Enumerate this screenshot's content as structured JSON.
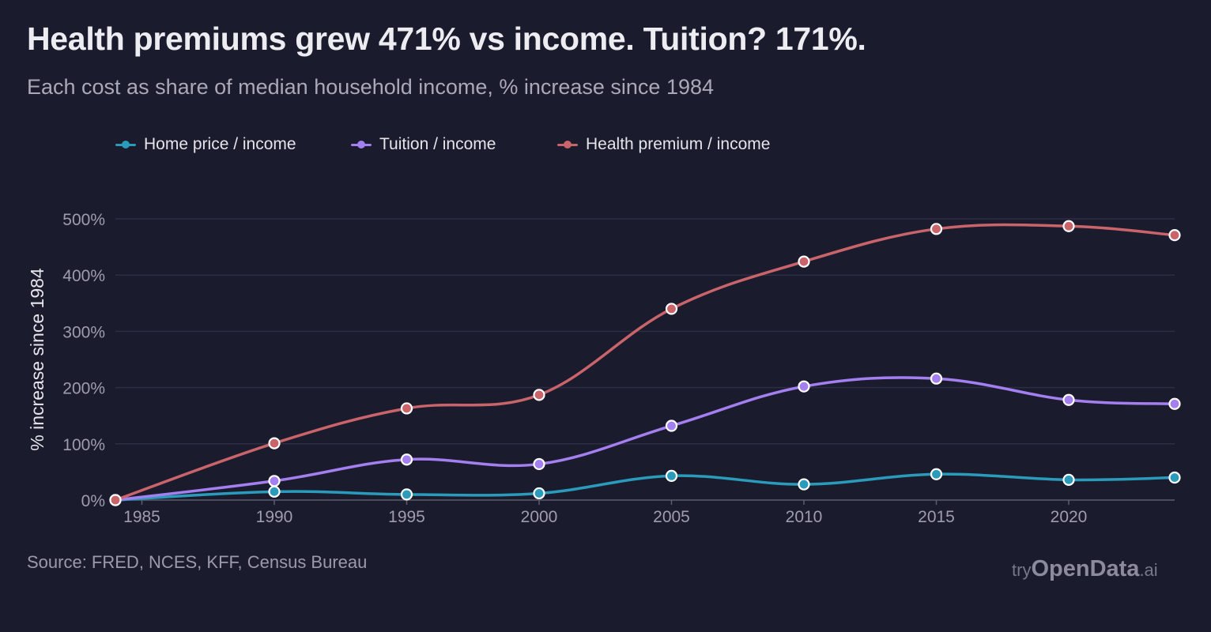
{
  "header": {
    "title": "Health premiums grew 471% vs income. Tuition? 171%.",
    "subtitle": "Each cost as share of median household income, % increase since 1984"
  },
  "footer": {
    "source": "Source: FRED, NCES, KFF, Census Bureau",
    "brand_prefix": "try",
    "brand_main": "OpenData",
    "brand_suffix": ".ai"
  },
  "chart_data": {
    "type": "line",
    "title": "Health premiums grew 471% vs income. Tuition? 171%.",
    "subtitle": "Each cost as share of median household income, % increase since 1984",
    "xlabel": "",
    "ylabel": "% increase since 1984",
    "xlim": [
      1984,
      2024
    ],
    "ylim": [
      0,
      500
    ],
    "x_ticks": [
      1985,
      1990,
      1995,
      2000,
      2005,
      2010,
      2015,
      2020
    ],
    "x_tick_labels": [
      "1985",
      "1990",
      "1995",
      "2000",
      "2005",
      "2010",
      "2015",
      "2020"
    ],
    "y_ticks": [
      0,
      100,
      200,
      300,
      400,
      500
    ],
    "y_tick_labels": [
      "0%",
      "100%",
      "200%",
      "300%",
      "400%",
      "500%"
    ],
    "grid": true,
    "legend_position": "top-left",
    "x": [
      1984,
      1990,
      1995,
      2000,
      2005,
      2010,
      2015,
      2020,
      2024
    ],
    "series": [
      {
        "name": "Home price / income",
        "color": "#2a9bbb",
        "values": [
          0,
          15,
          10,
          12,
          43,
          28,
          46,
          36,
          40
        ]
      },
      {
        "name": "Tuition / income",
        "color": "#a47ff0",
        "values": [
          0,
          34,
          72,
          64,
          132,
          202,
          216,
          178,
          171
        ]
      },
      {
        "name": "Health premium / income",
        "color": "#c9646a",
        "values": [
          0,
          101,
          163,
          187,
          340,
          424,
          482,
          487,
          471
        ]
      }
    ]
  }
}
